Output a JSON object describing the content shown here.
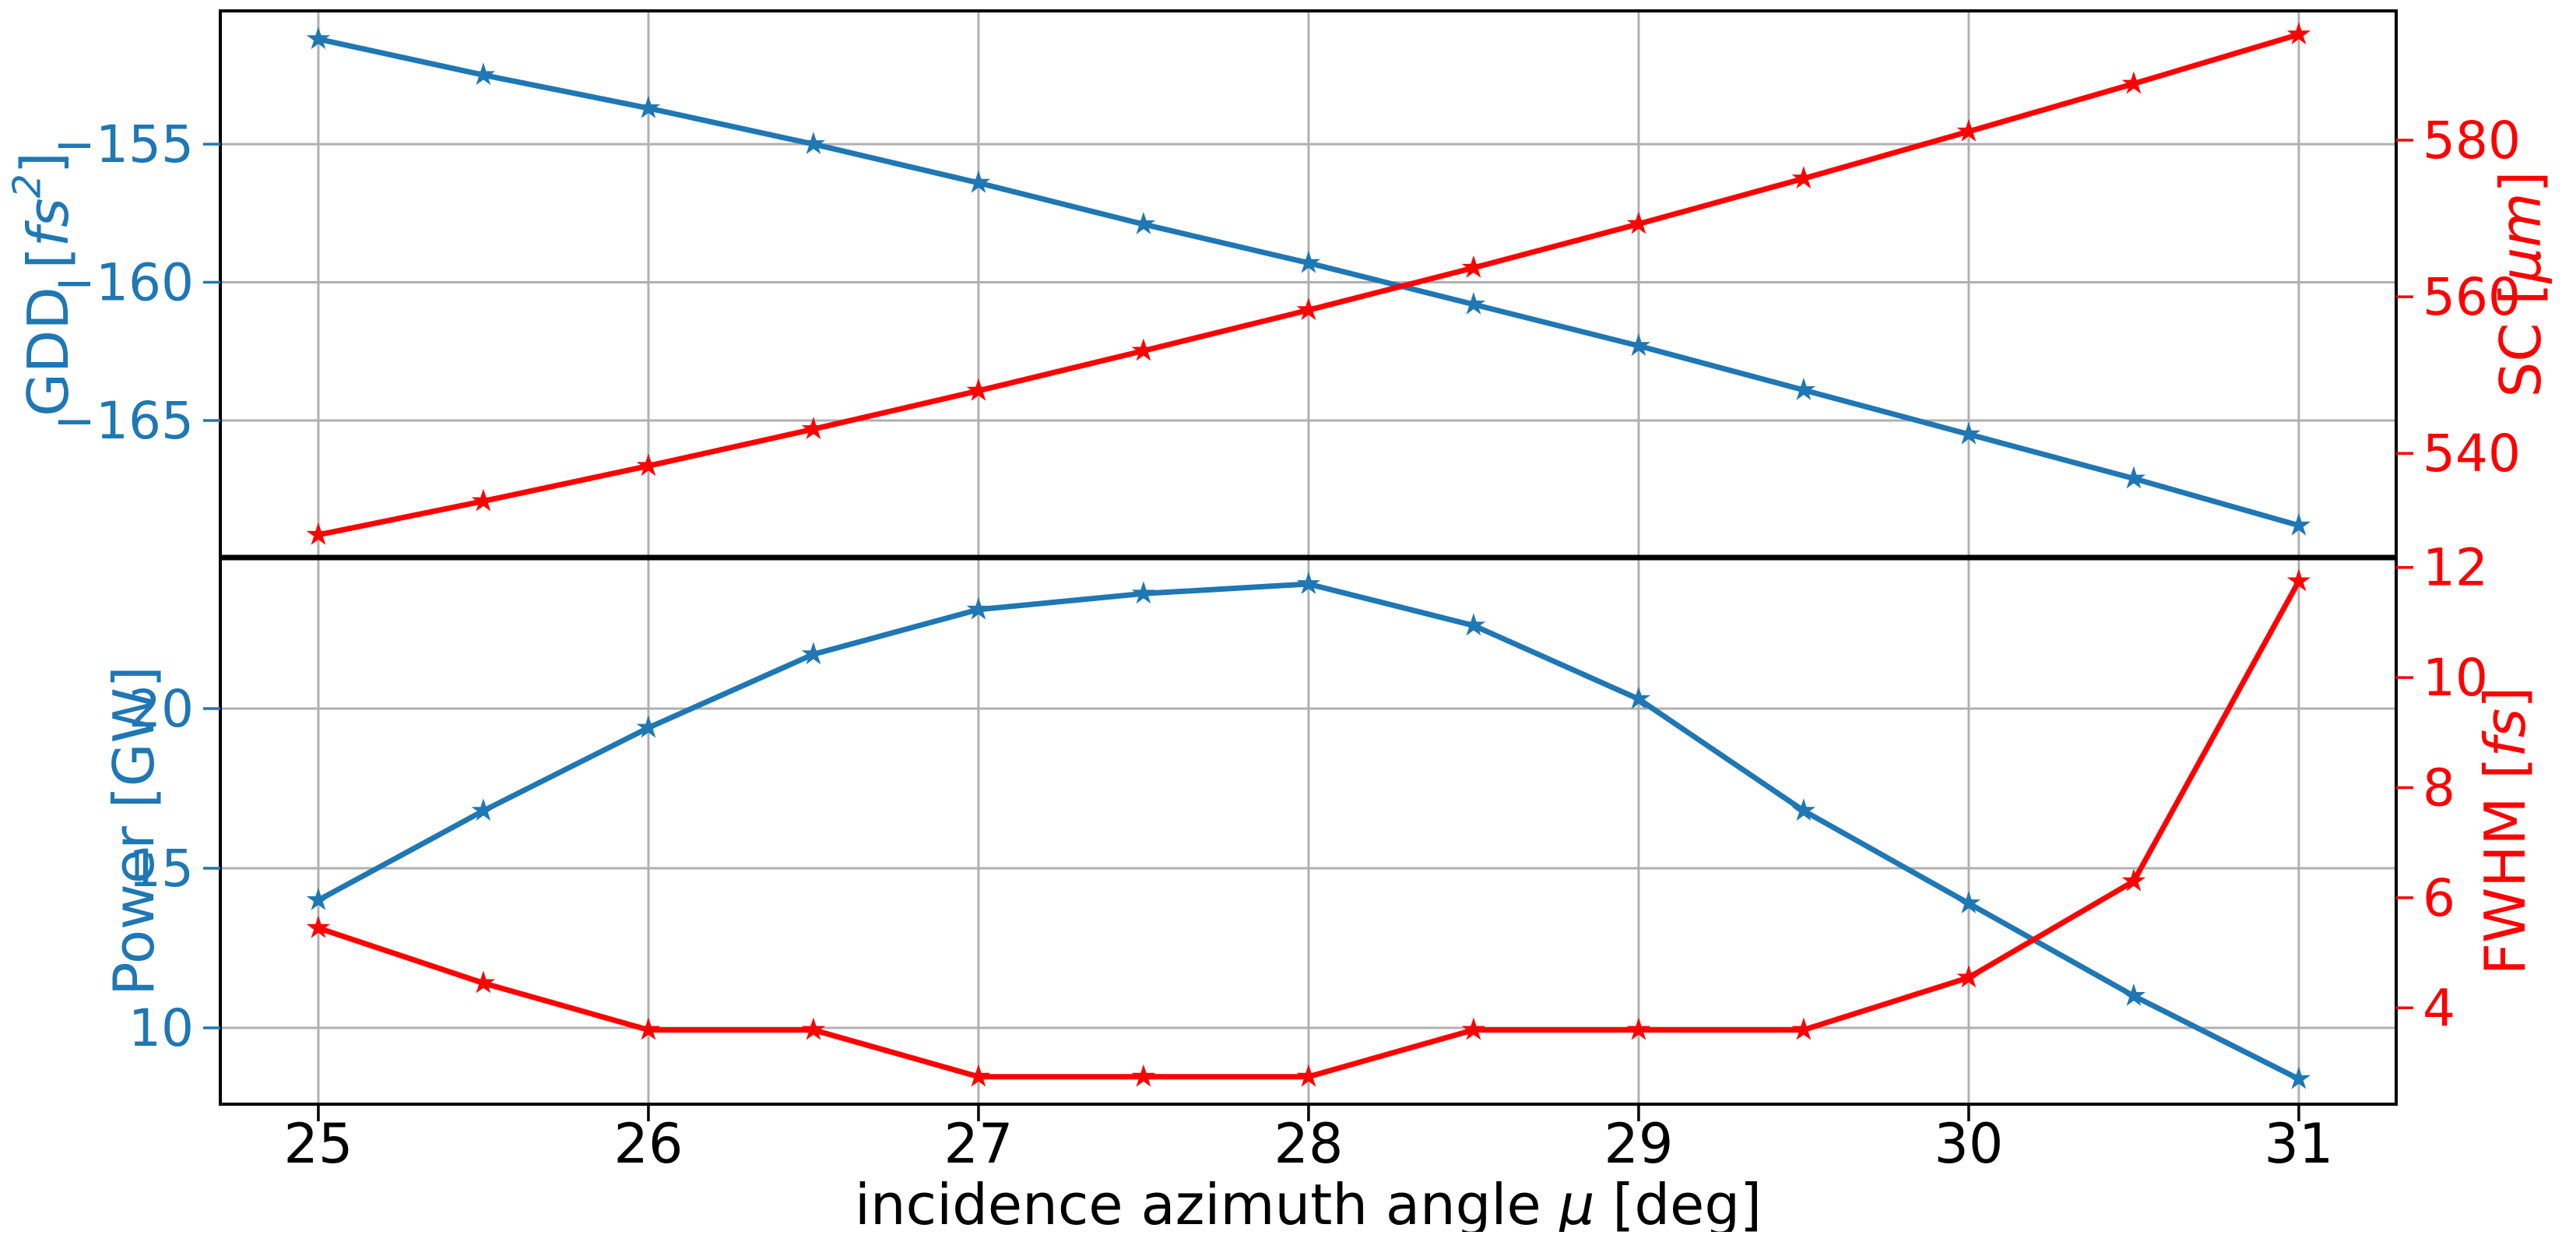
{
  "figure": {
    "background": "#ffffff",
    "grid_color": "#b0b0b0",
    "spine_color": "#000000",
    "blue": "#1f77b4",
    "red": "#ff0000",
    "xlabel_segments": [
      {
        "text": "incidence azimuth angle "
      },
      {
        "text": "μ",
        "italic": true
      },
      {
        "text": " [deg]"
      }
    ]
  },
  "chart_data": [
    {
      "type": "line",
      "panel": "top",
      "x": [
        25,
        25.5,
        26,
        26.5,
        27,
        27.5,
        28,
        28.5,
        29,
        29.5,
        30,
        30.5,
        31
      ],
      "xlim": [
        24.703,
        31.295
      ],
      "x_gridlines": [
        25,
        26,
        27,
        28,
        29,
        30,
        31
      ],
      "grid": true,
      "show_x_tick_labels": false,
      "left_axis": {
        "label_segments": [
          {
            "text": "GDD ["
          },
          {
            "text": "fs",
            "italic": true
          },
          {
            "text": "2",
            "italic": true,
            "sup": true
          },
          {
            "text": "]"
          }
        ],
        "color": "#1f77b4",
        "ticks": [
          -155,
          -160,
          -165
        ],
        "ylim": [
          -169.96,
          -150.18
        ]
      },
      "right_axis": {
        "label_segments": [
          {
            "text": "SC ["
          },
          {
            "text": "μm",
            "italic": true
          },
          {
            "text": "]"
          }
        ],
        "color": "#ff0000",
        "ticks": [
          580,
          560,
          540
        ],
        "ylim": [
          526.7,
          596.5
        ]
      },
      "series": [
        {
          "name": "GDD",
          "axis": "left",
          "color": "#1f77b4",
          "marker": "star",
          "values": [
            -151.2,
            -152.5,
            -153.7,
            -155.0,
            -156.4,
            -157.9,
            -159.3,
            -160.8,
            -162.3,
            -163.9,
            -165.5,
            -167.1,
            -168.8
          ]
        },
        {
          "name": "SC",
          "axis": "right",
          "color": "#ff0000",
          "marker": "star",
          "values": [
            529.6,
            533.9,
            538.4,
            543.1,
            548.0,
            553.1,
            558.3,
            563.7,
            569.3,
            575.1,
            581.1,
            587.2,
            593.5
          ]
        }
      ]
    },
    {
      "type": "line",
      "panel": "bottom",
      "x": [
        25,
        25.5,
        26,
        26.5,
        27,
        27.5,
        28,
        28.5,
        29,
        29.5,
        30,
        30.5,
        31
      ],
      "xlim": [
        24.703,
        31.295
      ],
      "x_gridlines": [
        25,
        26,
        27,
        28,
        29,
        30,
        31
      ],
      "x_ticks": [
        25,
        26,
        27,
        28,
        29,
        30,
        31
      ],
      "grid": true,
      "show_x_tick_labels": true,
      "left_axis": {
        "label_segments": [
          {
            "text": "Power [GW]"
          }
        ],
        "color": "#1f77b4",
        "ticks": [
          20,
          15,
          10
        ],
        "ylim": [
          7.61,
          24.73
        ]
      },
      "right_axis": {
        "label_segments": [
          {
            "text": "FWHM ["
          },
          {
            "text": "fs",
            "italic": true
          },
          {
            "text": "]"
          }
        ],
        "color": "#ff0000",
        "ticks": [
          12,
          10,
          8,
          6,
          4
        ],
        "ylim": [
          2.25,
          12.18
        ]
      },
      "series": [
        {
          "name": "Power",
          "axis": "left",
          "color": "#1f77b4",
          "marker": "star",
          "values": [
            14.0,
            16.8,
            19.4,
            21.7,
            23.1,
            23.6,
            23.9,
            22.6,
            20.3,
            16.8,
            13.9,
            11.0,
            8.4
          ]
        },
        {
          "name": "FWHM",
          "axis": "right",
          "color": "#ff0000",
          "marker": "star",
          "values": [
            5.45,
            4.45,
            3.6,
            3.6,
            2.75,
            2.75,
            2.75,
            3.6,
            3.6,
            3.6,
            4.55,
            6.3,
            11.75
          ]
        }
      ]
    }
  ]
}
